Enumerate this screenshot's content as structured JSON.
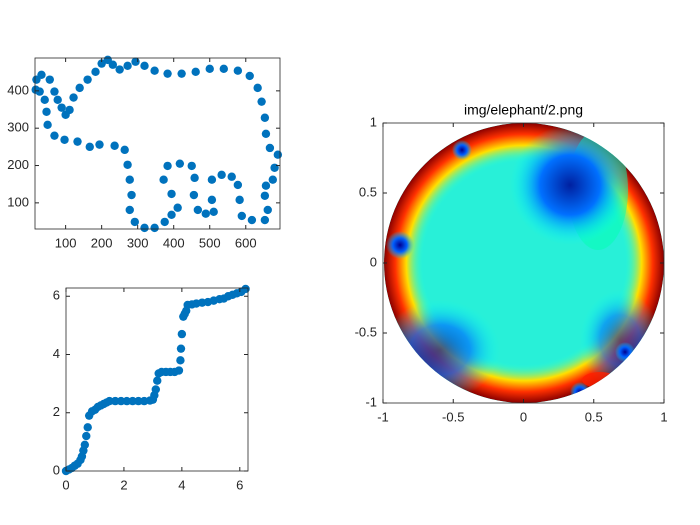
{
  "chart_data": [
    {
      "type": "scatter",
      "color": "#0072bd",
      "x": [
        17,
        19,
        33,
        56,
        69,
        78,
        89,
        100,
        111,
        122,
        139,
        161,
        183,
        200,
        217,
        231,
        250,
        272,
        294,
        319,
        347,
        383,
        422,
        461,
        500,
        539,
        578,
        611,
        633,
        644,
        653,
        656,
        667,
        689,
        680,
        675,
        656,
        653,
        661,
        653,
        617,
        589,
        583,
        578,
        561,
        533,
        506,
        506,
        511,
        489,
        467,
        456,
        458,
        450,
        417,
        383,
        372,
        394,
        411,
        394,
        375,
        347,
        319,
        292,
        278,
        283,
        278,
        272,
        264,
        236,
        194,
        167,
        133,
        97,
        69,
        50,
        47,
        42,
        28
      ],
      "y": [
        403,
        430,
        443,
        430,
        398,
        376,
        355,
        336,
        349,
        382,
        408,
        430,
        451,
        473,
        483,
        470,
        457,
        467,
        478,
        467,
        454,
        446,
        446,
        451,
        459,
        459,
        454,
        440,
        408,
        371,
        328,
        285,
        247,
        229,
        194,
        162,
        146,
        119,
        81,
        54,
        54,
        65,
        108,
        148,
        170,
        175,
        162,
        108,
        76,
        71,
        81,
        121,
        167,
        199,
        205,
        199,
        162,
        124,
        87,
        68,
        49,
        33,
        33,
        49,
        81,
        121,
        162,
        202,
        242,
        253,
        256,
        250,
        264,
        269,
        280,
        309,
        344,
        376,
        398
      ],
      "xlim": [
        15,
        695
      ],
      "ylim": [
        30,
        488
      ],
      "xticks": [
        100,
        200,
        300,
        400,
        500,
        600
      ],
      "yticks": [
        100,
        200,
        300,
        400
      ]
    },
    {
      "type": "scatter",
      "color": "#0072bd",
      "x": [
        0,
        0.1,
        0.2,
        0.3,
        0.4,
        0.5,
        0.55,
        0.6,
        0.65,
        0.7,
        0.75,
        0.8,
        0.9,
        1.0,
        1.1,
        1.2,
        1.3,
        1.4,
        1.5,
        1.7,
        1.9,
        2.1,
        2.3,
        2.5,
        2.7,
        2.9,
        3.0,
        3.05,
        3.1,
        3.15,
        3.2,
        3.3,
        3.45,
        3.6,
        3.75,
        3.9,
        3.95,
        3.97,
        4.0,
        4.05,
        4.1,
        4.15,
        4.2,
        4.35,
        4.5,
        4.7,
        4.9,
        5.1,
        5.3,
        5.45,
        5.6,
        5.75,
        5.9,
        6.05,
        6.2
      ],
      "y": [
        0,
        0.05,
        0.1,
        0.18,
        0.25,
        0.38,
        0.5,
        0.7,
        0.9,
        1.2,
        1.5,
        1.9,
        2.05,
        2.1,
        2.2,
        2.25,
        2.3,
        2.35,
        2.4,
        2.4,
        2.4,
        2.4,
        2.4,
        2.4,
        2.4,
        2.42,
        2.45,
        2.6,
        2.8,
        3.1,
        3.35,
        3.4,
        3.4,
        3.4,
        3.4,
        3.45,
        3.8,
        4.2,
        4.7,
        5.3,
        5.4,
        5.5,
        5.7,
        5.72,
        5.75,
        5.78,
        5.8,
        5.85,
        5.9,
        5.92,
        6.0,
        6.05,
        6.1,
        6.15,
        6.25
      ],
      "xlim": [
        0,
        6.2832
      ],
      "ylim": [
        0,
        6.2832
      ],
      "xticks": [
        0,
        2,
        4,
        6
      ],
      "yticks": [
        0,
        2,
        4,
        6
      ]
    },
    {
      "type": "image",
      "title": "img/elephant/2.png",
      "xlim": [
        -1,
        1
      ],
      "ylim": [
        -1,
        1
      ],
      "xticks": [
        -1,
        -0.5,
        0,
        0.5,
        1
      ],
      "yticks": [
        -1,
        -0.5,
        0,
        0.5,
        1
      ]
    }
  ]
}
